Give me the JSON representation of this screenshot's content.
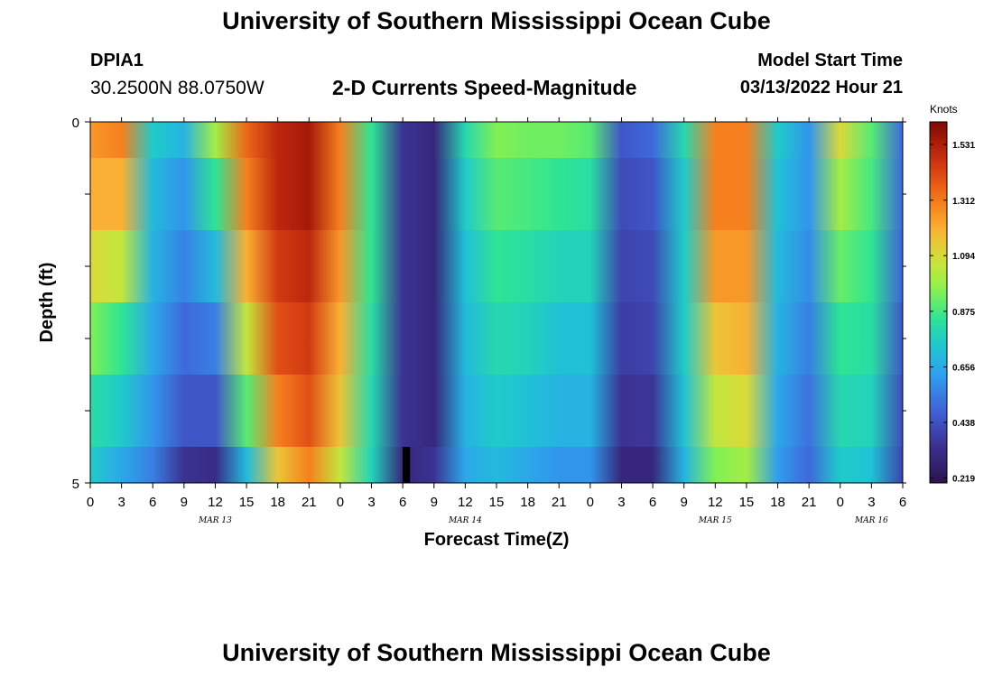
{
  "header": {
    "title": "University of Southern Mississippi Ocean Cube",
    "station_id": "DPIA1",
    "station_coords": "30.2500N  88.0750W",
    "subtitle": "2-D Currents Speed-Magnitude",
    "model_label": "Model Start Time",
    "model_time": "03/13/2022 Hour 21"
  },
  "footer": {
    "title": "University of Southern Mississippi Ocean Cube"
  },
  "chart_data": {
    "type": "heatmap",
    "title": "2-D Currents Speed-Magnitude",
    "xlabel": "Forecast Time(Z)",
    "ylabel": "Depth (ft)",
    "y_range": [
      0,
      5
    ],
    "y_tick_labels": [
      "0",
      "5"
    ],
    "x_range_hours": [
      0,
      78
    ],
    "x_tick_labels": [
      "0",
      "3",
      "6",
      "9",
      "12",
      "15",
      "18",
      "21",
      "0",
      "3",
      "6",
      "9",
      "12",
      "15",
      "18",
      "21",
      "0",
      "3",
      "6",
      "9",
      "12",
      "15",
      "18",
      "21",
      "0",
      "3",
      "6"
    ],
    "date_labels": [
      {
        "text": "MAR 13",
        "hour": 12
      },
      {
        "text": "MAR 14",
        "hour": 36
      },
      {
        "text": "MAR 15",
        "hour": 60
      },
      {
        "text": "MAR 16",
        "hour": 75
      }
    ],
    "colorbar": {
      "unit": "Knots",
      "min": 0.2,
      "max": 1.62,
      "tick_values": [
        1.531,
        1.312,
        1.094,
        0.875,
        0.656,
        0.438,
        0.219
      ],
      "tick_labels": [
        "1.531",
        "1.312",
        "1.094",
        "0.875",
        "0.656",
        "0.438",
        "0.219"
      ]
    },
    "layers": [
      {
        "depth_range": [
          0.0,
          0.5
        ],
        "speed_knots": {
          "0": 1.25,
          "3": 1.3,
          "6": 0.75,
          "9": 0.68,
          "12": 1.0,
          "15": 1.35,
          "18": 1.5,
          "21": 1.55,
          "24": 1.3,
          "27": 0.85,
          "30": 0.35,
          "33": 0.3,
          "36": 0.8,
          "39": 0.95,
          "42": 0.93,
          "45": 0.93,
          "48": 0.9,
          "51": 0.45,
          "54": 0.5,
          "57": 0.8,
          "60": 1.3,
          "63": 1.3,
          "66": 0.75,
          "69": 0.6,
          "72": 1.1,
          "75": 0.9,
          "78": 0.5
        }
      },
      {
        "depth_range": [
          0.5,
          1.5
        ],
        "speed_knots": {
          "0": 1.2,
          "3": 1.2,
          "6": 0.7,
          "9": 0.6,
          "12": 0.85,
          "15": 1.3,
          "18": 1.5,
          "21": 1.55,
          "24": 1.3,
          "27": 0.85,
          "30": 0.35,
          "33": 0.3,
          "36": 0.75,
          "39": 0.9,
          "42": 0.88,
          "45": 0.85,
          "48": 0.82,
          "51": 0.42,
          "54": 0.45,
          "57": 0.75,
          "60": 1.3,
          "63": 1.3,
          "66": 0.72,
          "69": 0.6,
          "72": 1.0,
          "75": 0.88,
          "78": 0.5
        }
      },
      {
        "depth_range": [
          1.5,
          2.5
        ],
        "speed_knots": {
          "0": 1.1,
          "3": 1.05,
          "6": 0.68,
          "9": 0.56,
          "12": 0.7,
          "15": 1.2,
          "18": 1.45,
          "21": 1.5,
          "24": 1.25,
          "27": 0.85,
          "30": 0.35,
          "33": 0.3,
          "36": 0.72,
          "39": 0.85,
          "42": 0.82,
          "45": 0.78,
          "48": 0.78,
          "51": 0.4,
          "54": 0.42,
          "57": 0.75,
          "60": 1.25,
          "63": 1.25,
          "66": 0.7,
          "69": 0.58,
          "72": 0.92,
          "75": 0.85,
          "78": 0.48
        }
      },
      {
        "depth_range": [
          2.5,
          3.5
        ],
        "speed_knots": {
          "0": 0.95,
          "3": 0.85,
          "6": 0.65,
          "9": 0.5,
          "12": 0.55,
          "15": 1.05,
          "18": 1.4,
          "21": 1.45,
          "24": 1.2,
          "27": 0.82,
          "30": 0.35,
          "33": 0.3,
          "36": 0.7,
          "39": 0.8,
          "42": 0.78,
          "45": 0.72,
          "48": 0.72,
          "51": 0.38,
          "54": 0.4,
          "57": 0.75,
          "60": 1.15,
          "63": 1.2,
          "66": 0.68,
          "69": 0.55,
          "72": 0.85,
          "75": 0.82,
          "78": 0.45
        }
      },
      {
        "depth_range": [
          3.5,
          4.5
        ],
        "speed_knots": {
          "0": 0.82,
          "3": 0.75,
          "6": 0.6,
          "9": 0.45,
          "12": 0.45,
          "15": 0.9,
          "18": 1.3,
          "21": 1.4,
          "24": 1.15,
          "27": 0.8,
          "30": 0.35,
          "33": 0.3,
          "36": 0.68,
          "39": 0.75,
          "42": 0.72,
          "45": 0.68,
          "48": 0.68,
          "51": 0.35,
          "54": 0.36,
          "57": 0.72,
          "60": 1.05,
          "63": 1.1,
          "66": 0.65,
          "69": 0.52,
          "72": 0.8,
          "75": 0.78,
          "78": 0.42
        }
      },
      {
        "depth_range": [
          4.5,
          5.0
        ],
        "speed_knots": {
          "0": 0.75,
          "3": 0.65,
          "6": 0.55,
          "9": 0.35,
          "12": 0.32,
          "15": 0.7,
          "18": 1.15,
          "21": 1.3,
          "24": 1.05,
          "27": 0.78,
          "30": 0.3,
          "33": 0.35,
          "36": 0.65,
          "39": 0.7,
          "42": 0.65,
          "45": 0.6,
          "48": 0.6,
          "51": 0.3,
          "54": 0.3,
          "57": 0.68,
          "60": 0.95,
          "63": 1.0,
          "66": 0.62,
          "69": 0.5,
          "72": 0.75,
          "75": 0.72,
          "78": 0.4
        }
      }
    ],
    "missing_data": {
      "hour_range": [
        30.0,
        30.7
      ],
      "depth_range": [
        4.5,
        5.0
      ]
    }
  }
}
